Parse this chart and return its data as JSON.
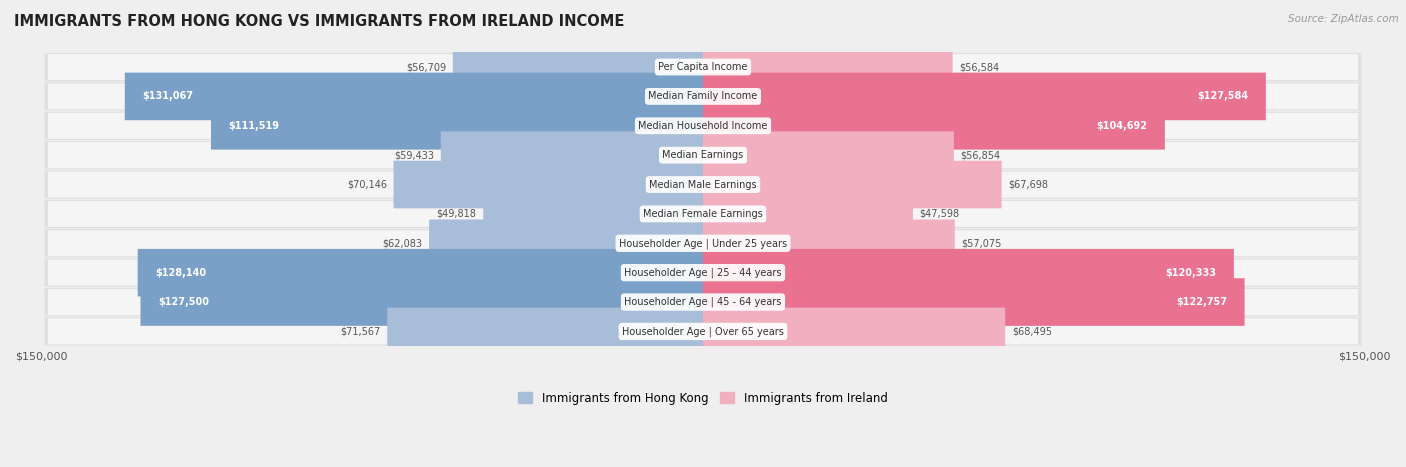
{
  "title": "IMMIGRANTS FROM HONG KONG VS IMMIGRANTS FROM IRELAND INCOME",
  "source": "Source: ZipAtlas.com",
  "categories": [
    "Per Capita Income",
    "Median Family Income",
    "Median Household Income",
    "Median Earnings",
    "Median Male Earnings",
    "Median Female Earnings",
    "Householder Age | Under 25 years",
    "Householder Age | 25 - 44 years",
    "Householder Age | 45 - 64 years",
    "Householder Age | Over 65 years"
  ],
  "hk_values": [
    56709,
    131067,
    111519,
    59433,
    70146,
    49818,
    62083,
    128140,
    127500,
    71567
  ],
  "ireland_values": [
    56584,
    127584,
    104692,
    56854,
    67698,
    47598,
    57075,
    120333,
    122757,
    68495
  ],
  "hk_labels": [
    "$56,709",
    "$131,067",
    "$111,519",
    "$59,433",
    "$70,146",
    "$49,818",
    "$62,083",
    "$128,140",
    "$127,500",
    "$71,567"
  ],
  "ireland_labels": [
    "$56,584",
    "$127,584",
    "$104,692",
    "$56,854",
    "$67,698",
    "$47,598",
    "$57,075",
    "$120,333",
    "$122,757",
    "$68,495"
  ],
  "hk_color_light": "#a8bdd8",
  "hk_color_dark": "#7aa0c8",
  "ireland_color_light": "#f2afc0",
  "ireland_color_dark": "#e8728f",
  "max_value": 150000,
  "legend_hk_color": "#a8bdd8",
  "legend_ireland_color": "#f2afc0",
  "label_threshold": 100000,
  "row_outer_color": "#e0e0e0",
  "row_inner_color": "#f5f5f5",
  "bg_color": "#efefef"
}
